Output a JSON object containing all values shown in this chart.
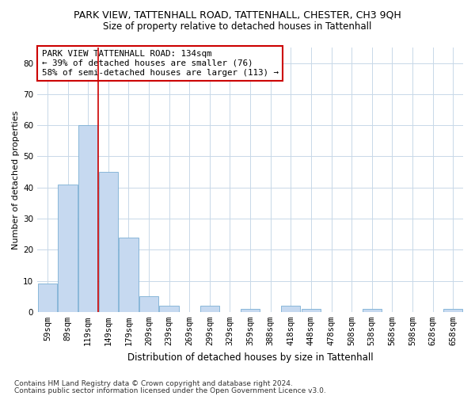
{
  "title": "PARK VIEW, TATTENHALL ROAD, TATTENHALL, CHESTER, CH3 9QH",
  "subtitle": "Size of property relative to detached houses in Tattenhall",
  "xlabel": "Distribution of detached houses by size in Tattenhall",
  "ylabel": "Number of detached properties",
  "bar_categories": [
    "59sqm",
    "89sqm",
    "119sqm",
    "149sqm",
    "179sqm",
    "209sqm",
    "239sqm",
    "269sqm",
    "299sqm",
    "329sqm",
    "359sqm",
    "388sqm",
    "418sqm",
    "448sqm",
    "478sqm",
    "508sqm",
    "538sqm",
    "568sqm",
    "598sqm",
    "628sqm",
    "658sqm"
  ],
  "bar_values": [
    9,
    41,
    60,
    45,
    24,
    5,
    2,
    0,
    2,
    0,
    1,
    0,
    2,
    1,
    0,
    0,
    1,
    0,
    0,
    0,
    1
  ],
  "bar_color": "#c6d9f0",
  "bar_edge_color": "#7bafd4",
  "grid_color": "#c8d8e8",
  "vline_x": 2.5,
  "vline_color": "#cc0000",
  "annotation_text": "PARK VIEW TATTENHALL ROAD: 134sqm\n← 39% of detached houses are smaller (76)\n58% of semi-detached houses are larger (113) →",
  "annotation_box_color": "#ffffff",
  "annotation_box_edge": "#cc0000",
  "footnote1": "Contains HM Land Registry data © Crown copyright and database right 2024.",
  "footnote2": "Contains public sector information licensed under the Open Government Licence v3.0.",
  "ylim": [
    0,
    85
  ],
  "yticks": [
    0,
    10,
    20,
    30,
    40,
    50,
    60,
    70,
    80
  ],
  "title_fontsize": 9,
  "subtitle_fontsize": 8.5,
  "ylabel_fontsize": 8,
  "xlabel_fontsize": 8.5,
  "tick_fontsize": 7.5,
  "annotation_fontsize": 7.8,
  "footnote_fontsize": 6.5,
  "background_color": "#ffffff"
}
